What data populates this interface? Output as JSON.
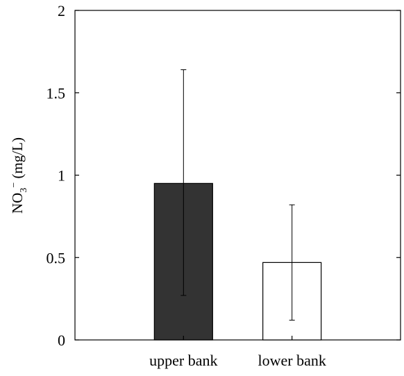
{
  "chart_data": {
    "type": "bar",
    "categories": [
      "upper bank",
      "lower bank"
    ],
    "values": [
      0.95,
      0.47
    ],
    "error_low": [
      0.27,
      0.12
    ],
    "error_high": [
      1.64,
      0.82
    ],
    "bar_colors": [
      "#333333",
      "#ffffff"
    ],
    "ylabel": {
      "prefix": "NO",
      "sub": "3",
      "sup": "−",
      "suffix": " (mg/L)"
    },
    "ylim": [
      0,
      2
    ],
    "yticks": [
      0,
      0.5,
      1,
      1.5,
      2
    ],
    "ytick_labels": [
      "0",
      "0.5",
      "1",
      "1.5",
      "2"
    ],
    "grid": false
  }
}
